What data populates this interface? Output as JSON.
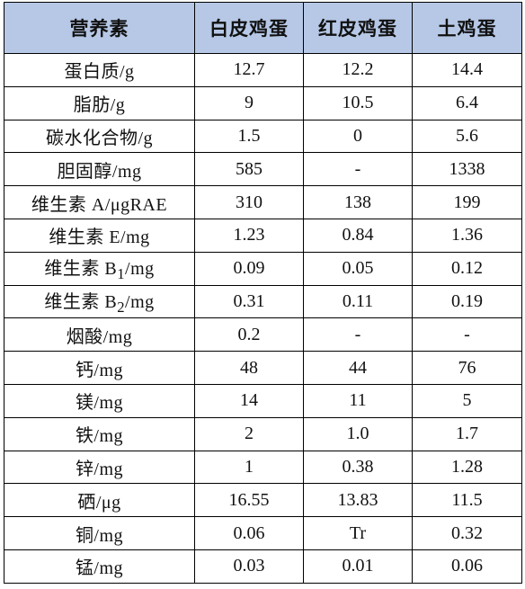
{
  "table": {
    "headers": [
      "营养素",
      "白皮鸡蛋",
      "红皮鸡蛋",
      "土鸡蛋"
    ],
    "rows": [
      {
        "name_html": "蛋白质/g",
        "white": "12.7",
        "red": "12.2",
        "native": "14.4"
      },
      {
        "name_html": "脂肪/g",
        "white": "9",
        "red": "10.5",
        "native": "6.4"
      },
      {
        "name_html": "碳水化合物/g",
        "white": "1.5",
        "red": "0",
        "native": "5.6"
      },
      {
        "name_html": "胆固醇/mg",
        "white": "585",
        "red": "-",
        "native": "1338"
      },
      {
        "name_html": "维生素 A/μgRAE",
        "white": "310",
        "red": "138",
        "native": "199"
      },
      {
        "name_html": "维生素 E/mg",
        "white": "1.23",
        "red": "0.84",
        "native": "1.36"
      },
      {
        "name_html": "维生素 B<sub>1</sub>/mg",
        "white": "0.09",
        "red": "0.05",
        "native": "0.12"
      },
      {
        "name_html": "维生素 B<sub>2</sub>/mg",
        "white": "0.31",
        "red": "0.11",
        "native": "0.19"
      },
      {
        "name_html": "烟酸/mg",
        "white": "0.2",
        "red": "-",
        "native": "-"
      },
      {
        "name_html": "钙/mg",
        "white": "48",
        "red": "44",
        "native": "76"
      },
      {
        "name_html": "镁/mg",
        "white": "14",
        "red": "11",
        "native": "5"
      },
      {
        "name_html": "铁/mg",
        "white": "2",
        "red": "1.0",
        "native": "1.7"
      },
      {
        "name_html": "锌/mg",
        "white": "1",
        "red": "0.38",
        "native": "1.28"
      },
      {
        "name_html": "硒/μg",
        "white": "16.55",
        "red": "13.83",
        "native": "11.5"
      },
      {
        "name_html": "铜/mg",
        "white": "0.06",
        "red": "Tr",
        "native": "0.32"
      },
      {
        "name_html": "锰/mg",
        "white": "0.03",
        "red": "0.01",
        "native": "0.06"
      }
    ]
  },
  "colors": {
    "header_background": "#b6c8e6",
    "border": "#000000",
    "text": "#111111"
  }
}
